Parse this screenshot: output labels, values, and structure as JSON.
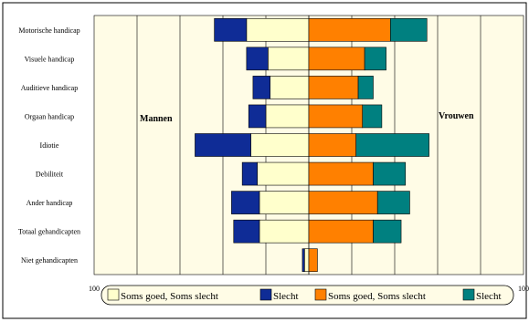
{
  "chart_data": {
    "type": "bar",
    "orientation": "horizontal-diverging",
    "categories": [
      "Motorische handicap",
      "Visuele handicap",
      "Auditieve handicap",
      "Orgaan handicap",
      "Idiotie",
      "Debiliteit",
      "Ander handicap",
      "Totaal gehandicapten",
      "Niet gehandicapten"
    ],
    "groups": [
      {
        "label": "Mannen",
        "side": "left",
        "series": [
          {
            "name": "Soms goed, Soms slecht",
            "color": "#ffffcc",
            "values": [
              29,
              19,
              18,
              20,
              27,
              24,
              23,
              23,
              2
            ]
          },
          {
            "name": "Slecht",
            "color": "#0f2c96",
            "values": [
              15,
              10,
              8,
              8,
              26,
              7,
              13,
              12,
              1
            ]
          }
        ]
      },
      {
        "label": "Vrouwen",
        "side": "right",
        "series": [
          {
            "name": "Soms goed, Soms slecht",
            "color": "#ff8000",
            "values": [
              38,
              26,
              23,
              25,
              22,
              30,
              32,
              30,
              4
            ]
          },
          {
            "name": "Slecht",
            "color": "#008080",
            "values": [
              17,
              10,
              7,
              9,
              34,
              15,
              15,
              13,
              0
            ]
          }
        ]
      }
    ],
    "x_ticks": [
      "100",
      "80",
      "60",
      "40",
      "20",
      "0",
      "20",
      "40",
      "60",
      "80",
      "100"
    ],
    "xlim": [
      -100,
      100
    ],
    "grid": true,
    "plot_background": "#fffce6",
    "legend": {
      "placement": "bottom",
      "entries": [
        {
          "label": "Soms goed, Soms slecht",
          "color": "#ffffcc"
        },
        {
          "label": "Slecht",
          "color": "#0f2c96"
        },
        {
          "label": "Soms goed, Soms slecht",
          "color": "#ff8000"
        },
        {
          "label": "Slecht",
          "color": "#008080"
        }
      ]
    }
  }
}
